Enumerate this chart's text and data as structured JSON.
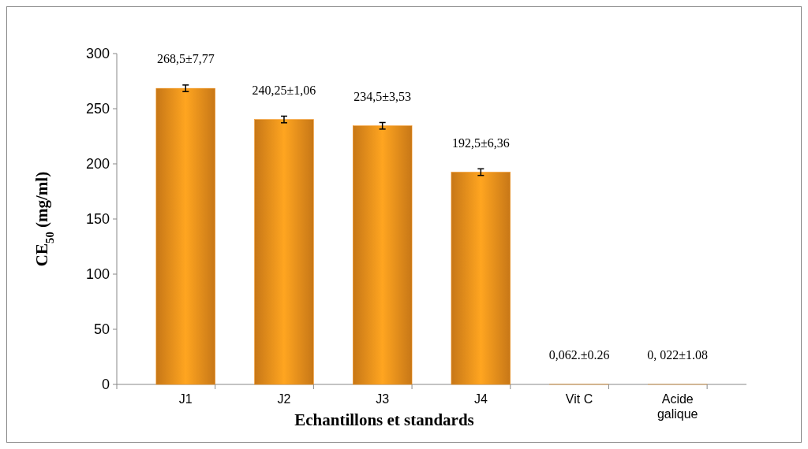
{
  "chart_data": {
    "type": "bar",
    "xlabel": "Echantillons et standards",
    "ylabel": "CE$_{50}$  (mg/ml)",
    "categories": [
      "J1",
      "J2",
      "J3",
      "J4",
      "Vit C",
      "Acide galique"
    ],
    "values": [
      268.5,
      240.25,
      234.5,
      192.5,
      0.062,
      0.022
    ],
    "errors": [
      3,
      3,
      3,
      3,
      null,
      null
    ],
    "value_labels": [
      "268,5±7,77",
      "240,25±1,06",
      "234,5±3,53",
      "192,5±6,36",
      "0,062.±0.26",
      "0, 022±1.08"
    ],
    "color": "#f7941d",
    "ylim": [
      0,
      300
    ],
    "yticks": [
      0,
      50,
      100,
      150,
      200,
      250,
      300
    ],
    "grid": false
  }
}
